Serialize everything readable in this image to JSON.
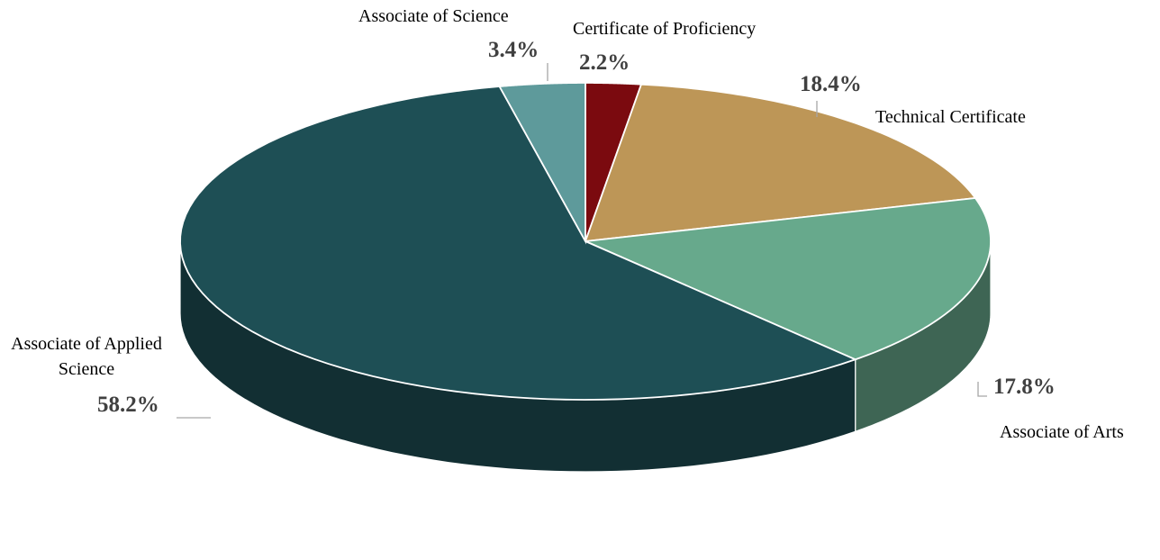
{
  "chart_data": {
    "type": "pie",
    "categories": [
      "Certificate of Proficiency",
      "Technical Certificate",
      "Associate of Arts",
      "Associate of Applied Science",
      "Associate of Science"
    ],
    "values": [
      2.2,
      18.4,
      17.8,
      58.2,
      3.4
    ],
    "value_labels": [
      "2.2%",
      "18.4%",
      "17.8%",
      "58.2%",
      "3.4%"
    ],
    "colors": [
      "#7b0a0f",
      "#bd9657",
      "#67a98c",
      "#1e4f55",
      "#5e9a9b"
    ]
  }
}
